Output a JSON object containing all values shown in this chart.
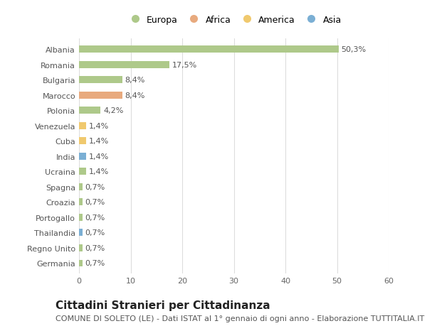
{
  "countries": [
    "Albania",
    "Romania",
    "Bulgaria",
    "Marocco",
    "Polonia",
    "Venezuela",
    "Cuba",
    "India",
    "Ucraina",
    "Spagna",
    "Croazia",
    "Portogallo",
    "Thailandia",
    "Regno Unito",
    "Germania"
  ],
  "values": [
    50.3,
    17.5,
    8.4,
    8.4,
    4.2,
    1.4,
    1.4,
    1.4,
    1.4,
    0.7,
    0.7,
    0.7,
    0.7,
    0.7,
    0.7
  ],
  "labels": [
    "50,3%",
    "17,5%",
    "8,4%",
    "8,4%",
    "4,2%",
    "1,4%",
    "1,4%",
    "1,4%",
    "1,4%",
    "0,7%",
    "0,7%",
    "0,7%",
    "0,7%",
    "0,7%",
    "0,7%"
  ],
  "continent": [
    "Europa",
    "Europa",
    "Europa",
    "Africa",
    "Europa",
    "America",
    "America",
    "Asia",
    "Europa",
    "Europa",
    "Europa",
    "Europa",
    "Asia",
    "Europa",
    "Europa"
  ],
  "colors": {
    "Europa": "#aec98a",
    "Africa": "#e8aa7e",
    "America": "#f0c96e",
    "Asia": "#7bafd4"
  },
  "legend_order": [
    "Europa",
    "Africa",
    "America",
    "Asia"
  ],
  "title": "Cittadini Stranieri per Cittadinanza",
  "subtitle": "COMUNE DI SOLETO (LE) - Dati ISTAT al 1° gennaio di ogni anno - Elaborazione TUTTITALIA.IT",
  "xlim": [
    0,
    60
  ],
  "xticks": [
    0,
    10,
    20,
    30,
    40,
    50,
    60
  ],
  "bg_color": "#ffffff",
  "grid_color": "#dddddd",
  "bar_height": 0.45,
  "title_fontsize": 11,
  "subtitle_fontsize": 8,
  "label_fontsize": 8,
  "tick_fontsize": 8,
  "legend_fontsize": 9
}
